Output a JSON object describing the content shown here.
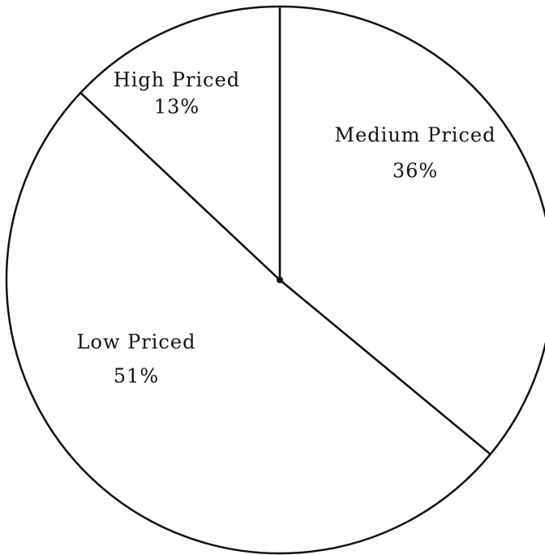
{
  "chart_data": {
    "type": "pie",
    "categories": [
      "Medium Priced",
      "Low Priced",
      "High Priced"
    ],
    "values": [
      36,
      51,
      13
    ],
    "value_labels": [
      "36%",
      "51%",
      "13%"
    ],
    "colors": [
      "#ffffff",
      "#ffffff",
      "#ffffff"
    ]
  }
}
